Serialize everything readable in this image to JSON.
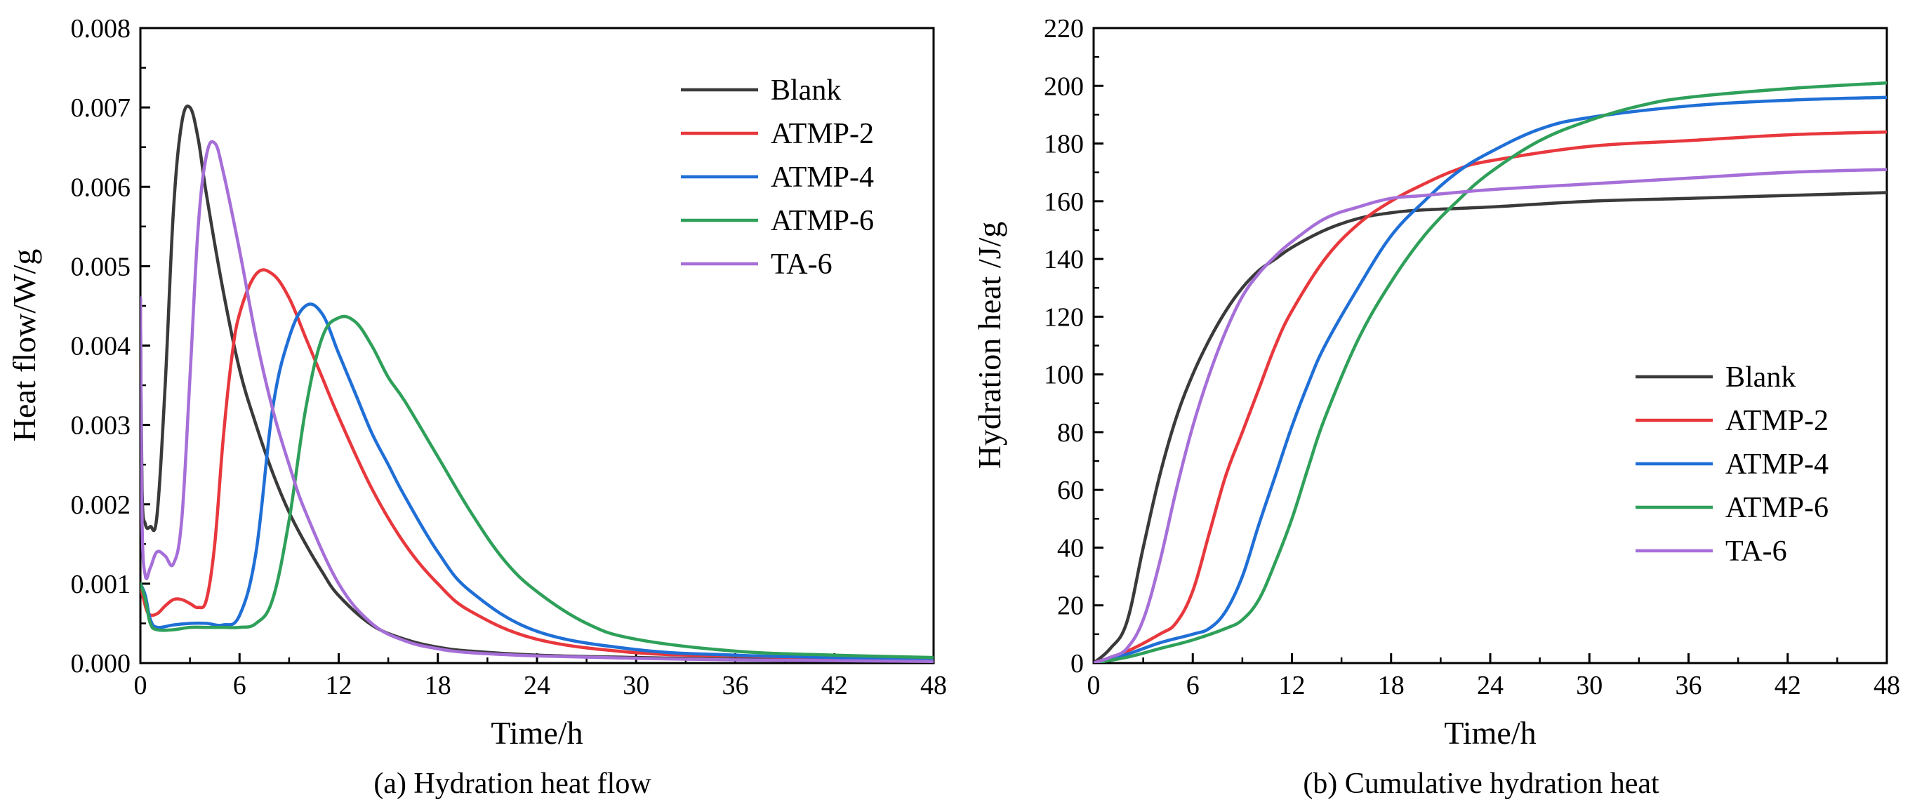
{
  "chart_data": [
    {
      "type": "line",
      "xlabel": "Time/h",
      "ylabel": "Heat flow/W/g",
      "caption": "(a) Hydration heat flow",
      "xlim": [
        0,
        48
      ],
      "ylim": [
        0,
        0.008
      ],
      "xticks": [
        0,
        6,
        12,
        18,
        24,
        30,
        36,
        42,
        48
      ],
      "yticks": [
        0.0,
        0.001,
        0.002,
        0.003,
        0.004,
        0.005,
        0.006,
        0.007,
        0.008
      ],
      "xtick_labels": [
        "0",
        "6",
        "12",
        "18",
        "24",
        "30",
        "36",
        "42",
        "48"
      ],
      "ytick_labels": [
        "0.000",
        "0.001",
        "0.002",
        "0.003",
        "0.004",
        "0.005",
        "0.006",
        "0.007",
        "0.008"
      ],
      "legend_position": "top-right",
      "series": [
        {
          "name": "Blank",
          "color": "#3a3a3a",
          "x": [
            0,
            0.1,
            0.3,
            0.6,
            1.0,
            1.5,
            2.0,
            2.5,
            3.0,
            3.5,
            4.0,
            5.0,
            6.0,
            7.0,
            8.0,
            9.0,
            10.0,
            11.0,
            12.0,
            14.0,
            16.0,
            18.0,
            20.0,
            24.0,
            30.0,
            36.0,
            42.0,
            48.0
          ],
          "y": [
            0.0046,
            0.0022,
            0.00175,
            0.00172,
            0.00185,
            0.0035,
            0.0057,
            0.0068,
            0.007,
            0.0066,
            0.0059,
            0.0047,
            0.0037,
            0.003,
            0.0024,
            0.0019,
            0.0015,
            0.00115,
            0.00085,
            0.00048,
            0.0003,
            0.0002,
            0.00015,
            0.0001,
            7e-05,
            5e-05,
            4e-05,
            3e-05
          ]
        },
        {
          "name": "ATMP-2",
          "color": "#e8383d",
          "x": [
            0,
            0.2,
            0.5,
            1.0,
            1.5,
            2.0,
            2.5,
            3.0,
            3.5,
            4.0,
            4.5,
            5.0,
            5.5,
            6.0,
            7.0,
            8.0,
            9.0,
            10.0,
            11.0,
            12.0,
            14.0,
            16.0,
            18.0,
            20.0,
            24.0,
            30.0,
            36.0,
            42.0,
            48.0
          ],
          "y": [
            0.001,
            0.0008,
            0.00062,
            0.00062,
            0.00072,
            0.0008,
            0.0008,
            0.00075,
            0.0007,
            0.0008,
            0.0015,
            0.0028,
            0.0038,
            0.0044,
            0.0049,
            0.0049,
            0.0046,
            0.0041,
            0.0036,
            0.0031,
            0.0022,
            0.0015,
            0.001,
            0.00065,
            0.0003,
            0.00013,
            9e-05,
            6e-05,
            4e-05
          ]
        },
        {
          "name": "ATMP-4",
          "color": "#1f6fd6",
          "x": [
            0,
            0.3,
            0.6,
            1.0,
            2.0,
            3.0,
            4.0,
            5.0,
            6.0,
            7.0,
            8.0,
            9.0,
            10.0,
            11.0,
            12.0,
            13.0,
            14.0,
            15.0,
            16.0,
            18.0,
            20.0,
            24.0,
            30.0,
            36.0,
            42.0,
            48.0
          ],
          "y": [
            0.001,
            0.00085,
            0.00055,
            0.00045,
            0.00048,
            0.0005,
            0.0005,
            0.00048,
            0.0006,
            0.0014,
            0.0032,
            0.0041,
            0.0045,
            0.0044,
            0.0039,
            0.0034,
            0.0029,
            0.0025,
            0.0021,
            0.0014,
            0.0009,
            0.0004,
            0.00017,
            0.0001,
            7e-05,
            5e-05
          ]
        },
        {
          "name": "ATMP-6",
          "color": "#2fa05a",
          "x": [
            0,
            0.3,
            0.6,
            1.0,
            2.0,
            3.0,
            4.0,
            5.0,
            6.0,
            7.0,
            8.0,
            9.0,
            10.0,
            11.0,
            12.0,
            13.0,
            14.0,
            15.0,
            16.0,
            18.0,
            20.0,
            22.0,
            24.0,
            27.0,
            30.0,
            36.0,
            42.0,
            48.0
          ],
          "y": [
            0.001,
            0.0008,
            0.0005,
            0.00042,
            0.00042,
            0.00045,
            0.00045,
            0.00045,
            0.00045,
            0.0005,
            0.0008,
            0.0018,
            0.0032,
            0.0041,
            0.00435,
            0.0043,
            0.004,
            0.0036,
            0.0033,
            0.0026,
            0.0019,
            0.0013,
            0.0009,
            0.0005,
            0.0003,
            0.00015,
            0.0001,
            7e-05
          ]
        },
        {
          "name": "TA-6",
          "color": "#a66fd8",
          "x": [
            0,
            0.1,
            0.3,
            0.6,
            1.0,
            1.5,
            2.0,
            2.5,
            3.0,
            3.5,
            4.0,
            4.5,
            5.0,
            6.0,
            7.0,
            8.0,
            9.0,
            10.0,
            12.0,
            14.0,
            16.0,
            18.0,
            20.0,
            24.0,
            30.0,
            36.0,
            42.0,
            48.0
          ],
          "y": [
            0.0046,
            0.0018,
            0.0011,
            0.0012,
            0.0014,
            0.00135,
            0.00125,
            0.0018,
            0.0036,
            0.0055,
            0.0064,
            0.00655,
            0.0062,
            0.0052,
            0.0041,
            0.0032,
            0.0025,
            0.0019,
            0.001,
            0.0005,
            0.00028,
            0.00018,
            0.00013,
            9e-05,
            6e-05,
            4e-05,
            3e-05,
            2e-05
          ]
        }
      ]
    },
    {
      "type": "line",
      "xlabel": "Time/h",
      "ylabel": "Hydration heat /J/g",
      "caption": "(b) Cumulative hydration heat",
      "xlim": [
        0,
        48
      ],
      "ylim": [
        0,
        220
      ],
      "xticks": [
        0,
        6,
        12,
        18,
        24,
        30,
        36,
        42,
        48
      ],
      "yticks": [
        0,
        20,
        40,
        60,
        80,
        100,
        120,
        140,
        160,
        180,
        200,
        220
      ],
      "xtick_labels": [
        "0",
        "6",
        "12",
        "18",
        "24",
        "30",
        "36",
        "42",
        "48"
      ],
      "ytick_labels": [
        "0",
        "20",
        "40",
        "60",
        "80",
        "100",
        "120",
        "140",
        "160",
        "180",
        "200",
        "220"
      ],
      "legend_position": "center-right",
      "series": [
        {
          "name": "Blank",
          "color": "#3a3a3a",
          "x": [
            0,
            1,
            2,
            3,
            4,
            5,
            6,
            7,
            8,
            9,
            10,
            11,
            12,
            14,
            16,
            18,
            20,
            24,
            30,
            36,
            42,
            48
          ],
          "y": [
            0,
            5,
            14,
            40,
            65,
            85,
            100,
            112,
            122,
            130,
            136,
            140,
            144,
            150,
            154,
            156,
            157,
            158,
            160,
            161,
            162,
            163
          ]
        },
        {
          "name": "ATMP-2",
          "color": "#e8383d",
          "x": [
            0,
            2,
            4,
            5,
            6,
            7,
            8,
            9,
            10,
            11,
            12,
            14,
            16,
            18,
            20,
            22,
            24,
            30,
            36,
            42,
            48
          ],
          "y": [
            0,
            4,
            10,
            14,
            25,
            45,
            65,
            80,
            95,
            110,
            122,
            140,
            152,
            160,
            166,
            171,
            174,
            179,
            181,
            183,
            184
          ]
        },
        {
          "name": "ATMP-4",
          "color": "#1f6fd6",
          "x": [
            0,
            2,
            4,
            6,
            7,
            8,
            9,
            10,
            11,
            12,
            13,
            14,
            16,
            18,
            20,
            22,
            24,
            27,
            30,
            36,
            42,
            48
          ],
          "y": [
            0,
            3,
            7,
            10,
            12,
            18,
            30,
            48,
            65,
            82,
            97,
            110,
            130,
            148,
            160,
            170,
            177,
            185,
            189,
            193,
            195,
            196
          ]
        },
        {
          "name": "ATMP-6",
          "color": "#2fa05a",
          "x": [
            0,
            2,
            4,
            6,
            8,
            9,
            10,
            11,
            12,
            13,
            14,
            16,
            18,
            20,
            22,
            24,
            27,
            30,
            33,
            36,
            42,
            48
          ],
          "y": [
            0,
            2,
            5,
            8,
            12,
            15,
            22,
            35,
            50,
            68,
            85,
            112,
            132,
            148,
            160,
            170,
            181,
            188,
            193,
            196,
            199,
            201
          ]
        },
        {
          "name": "TA-6",
          "color": "#a66fd8",
          "x": [
            0,
            1,
            2,
            3,
            4,
            5,
            6,
            7,
            8,
            9,
            10,
            11,
            12,
            14,
            16,
            18,
            20,
            24,
            30,
            36,
            42,
            48
          ],
          "y": [
            0,
            2,
            5,
            15,
            35,
            60,
            82,
            100,
            115,
            127,
            135,
            141,
            146,
            154,
            158,
            161,
            162,
            164,
            166,
            168,
            170,
            171
          ]
        }
      ]
    }
  ]
}
